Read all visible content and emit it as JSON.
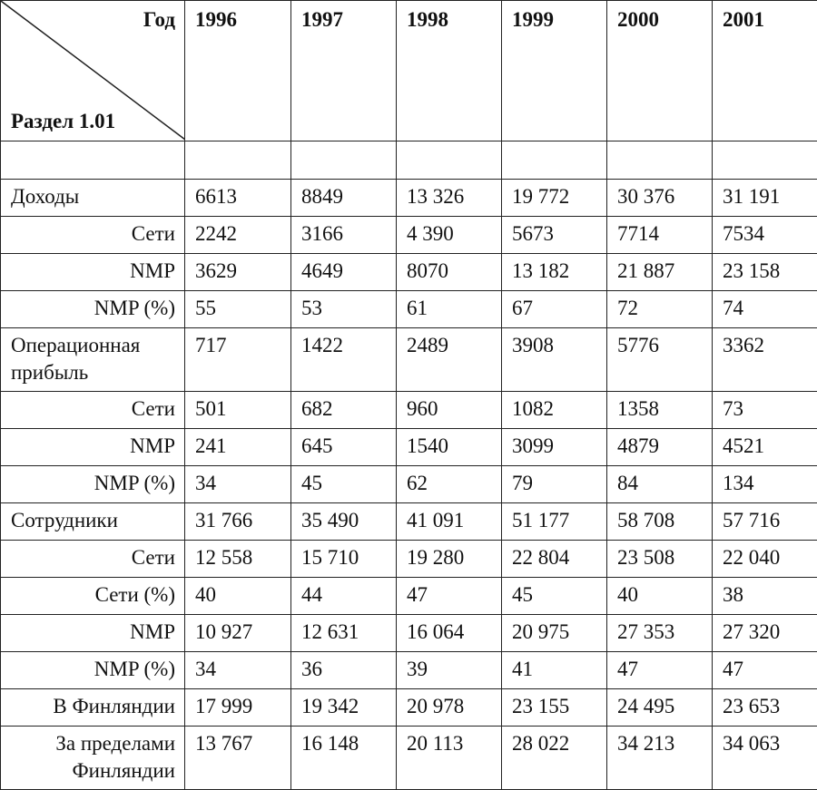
{
  "header": {
    "corner_top": "Год",
    "corner_bottom": "Раздел 1.01",
    "years": [
      "1996",
      "1997",
      "1998",
      "1999",
      "2000",
      "2001"
    ]
  },
  "table": {
    "groups": [
      {
        "label": "Доходы",
        "values": [
          "6613",
          "8849",
          "13 326",
          "19 772",
          "30 376",
          "31 191"
        ],
        "rows": [
          {
            "label": "Сети",
            "values": [
              "2242",
              "3166",
              "4 390",
              "5673",
              "7714",
              "7534"
            ]
          },
          {
            "label": "NMP",
            "values": [
              "3629",
              "4649",
              "8070",
              "13 182",
              "21 887",
              "23 158"
            ]
          },
          {
            "label": "NMP (%)",
            "values": [
              "55",
              "53",
              "61",
              "67",
              "72",
              "74"
            ]
          }
        ]
      },
      {
        "label": "Операционная прибыль",
        "values": [
          "717",
          "1422",
          "2489",
          "3908",
          "5776",
          "3362"
        ],
        "rows": [
          {
            "label": "Сети",
            "values": [
              "501",
              "682",
              "960",
              "1082",
              "1358",
              "73"
            ]
          },
          {
            "label": "NMP",
            "values": [
              "241",
              "645",
              "1540",
              "3099",
              "4879",
              "4521"
            ]
          },
          {
            "label": "NMP (%)",
            "values": [
              "34",
              "45",
              "62",
              "79",
              "84",
              "134"
            ]
          }
        ]
      },
      {
        "label": "Сотрудники",
        "values": [
          "31 766",
          "35 490",
          "41 091",
          "51 177",
          "58 708",
          "57 716"
        ],
        "rows": [
          {
            "label": "Сети",
            "values": [
              "12 558",
              "15 710",
              "19 280",
              "22 804",
              "23 508",
              "22 040"
            ]
          },
          {
            "label": "Сети (%)",
            "values": [
              "40",
              "44",
              "47",
              "45",
              "40",
              "38"
            ]
          },
          {
            "label": "NMP",
            "values": [
              "10 927",
              "12 631",
              "16 064",
              "20 975",
              "27 353",
              "27 320"
            ]
          },
          {
            "label": "NMP (%)",
            "values": [
              "34",
              "36",
              "39",
              "41",
              "47",
              "47"
            ]
          },
          {
            "label": "В Финляндии",
            "values": [
              "17 999",
              "19 342",
              "20 978",
              "23 155",
              "24 495",
              "23 653"
            ]
          },
          {
            "label": "За пределами Финляндии",
            "values": [
              "13 767",
              "16 148",
              "20 113",
              "28 022",
              "34 213",
              "34 063"
            ]
          }
        ]
      }
    ]
  }
}
